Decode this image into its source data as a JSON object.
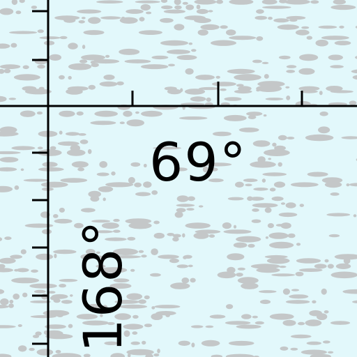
{
  "map": {
    "colors": {
      "water": "#e2f8fb",
      "ice_texture": "#c4c7c8",
      "grid": "#000000"
    },
    "grid_labels": {
      "latitude": "69°",
      "longitude": "168°"
    }
  }
}
